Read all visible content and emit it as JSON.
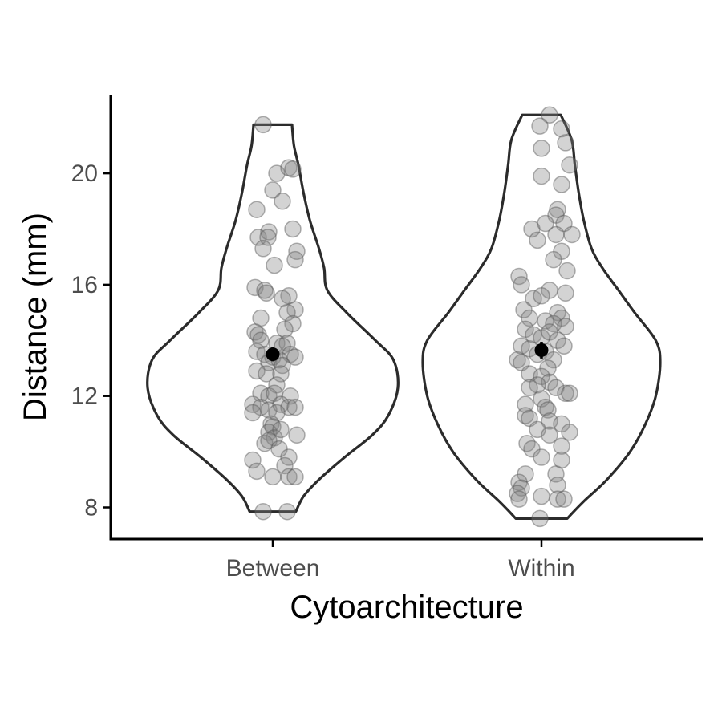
{
  "chart_data": {
    "type": "violin",
    "xlabel": "Cytoarchitecture",
    "ylabel": "Distance (mm)",
    "ylim": [
      6.8,
      22.8
    ],
    "yticks": [
      8,
      12,
      16,
      20
    ],
    "categories": [
      "Between",
      "Within"
    ],
    "groups": [
      {
        "category": "Between",
        "min": 7.85,
        "max": 21.75,
        "mean": 13.5,
        "error": [
          13.25,
          13.75
        ],
        "density": [
          [
            7.85,
            0.36
          ],
          [
            8.4,
            0.48
          ],
          [
            9.0,
            0.72
          ],
          [
            9.8,
            1.12
          ],
          [
            10.6,
            1.55
          ],
          [
            11.3,
            1.8
          ],
          [
            12.3,
            1.95
          ],
          [
            13.3,
            1.88
          ],
          [
            14.0,
            1.6
          ],
          [
            15.0,
            1.15
          ],
          [
            15.8,
            0.85
          ],
          [
            16.6,
            0.8
          ],
          [
            17.3,
            0.72
          ],
          [
            18.3,
            0.58
          ],
          [
            19.3,
            0.48
          ],
          [
            20.3,
            0.4
          ],
          [
            21.0,
            0.33
          ],
          [
            21.75,
            0.3
          ]
        ],
        "points": [
          [
            -0.12,
            21.75
          ],
          [
            0.05,
            20.0
          ],
          [
            0.2,
            20.2
          ],
          [
            0.25,
            20.15
          ],
          [
            0.0,
            19.4
          ],
          [
            0.12,
            19.0
          ],
          [
            -0.2,
            18.7
          ],
          [
            -0.18,
            17.7
          ],
          [
            -0.05,
            17.9
          ],
          [
            -0.06,
            17.7
          ],
          [
            0.25,
            18.0
          ],
          [
            -0.12,
            17.3
          ],
          [
            0.3,
            17.2
          ],
          [
            0.28,
            16.9
          ],
          [
            0.02,
            16.7
          ],
          [
            -0.22,
            15.9
          ],
          [
            -0.1,
            15.8
          ],
          [
            -0.08,
            15.7
          ],
          [
            0.2,
            15.6
          ],
          [
            0.12,
            15.5
          ],
          [
            0.28,
            15.1
          ],
          [
            0.18,
            15.0
          ],
          [
            -0.15,
            14.8
          ],
          [
            0.25,
            14.6
          ],
          [
            0.15,
            14.4
          ],
          [
            -0.22,
            14.3
          ],
          [
            -0.18,
            14.2
          ],
          [
            -0.15,
            14.0
          ],
          [
            0.05,
            13.9
          ],
          [
            0.18,
            13.9
          ],
          [
            0.12,
            13.8
          ],
          [
            -0.2,
            13.6
          ],
          [
            -0.1,
            13.5
          ],
          [
            0.0,
            13.4
          ],
          [
            0.22,
            13.5
          ],
          [
            0.28,
            13.4
          ],
          [
            -0.05,
            13.2
          ],
          [
            0.08,
            13.3
          ],
          [
            0.12,
            13.1
          ],
          [
            -0.2,
            12.9
          ],
          [
            -0.08,
            12.8
          ],
          [
            0.1,
            12.8
          ],
          [
            0.05,
            12.4
          ],
          [
            -0.15,
            12.1
          ],
          [
            -0.05,
            12.0
          ],
          [
            0.02,
            12.1
          ],
          [
            0.22,
            12.0
          ],
          [
            -0.25,
            11.7
          ],
          [
            -0.15,
            11.6
          ],
          [
            -0.05,
            11.5
          ],
          [
            0.1,
            11.7
          ],
          [
            0.2,
            11.6
          ],
          [
            0.28,
            11.6
          ],
          [
            -0.25,
            11.4
          ],
          [
            0.05,
            11.4
          ],
          [
            -0.02,
            11.0
          ],
          [
            0.0,
            10.9
          ],
          [
            -0.05,
            10.7
          ],
          [
            0.02,
            10.5
          ],
          [
            0.1,
            10.8
          ],
          [
            0.3,
            10.6
          ],
          [
            -0.1,
            10.3
          ],
          [
            -0.05,
            10.4
          ],
          [
            0.08,
            10.1
          ],
          [
            -0.25,
            9.7
          ],
          [
            0.2,
            9.8
          ],
          [
            -0.2,
            9.3
          ],
          [
            0.15,
            9.5
          ],
          [
            0.0,
            9.1
          ],
          [
            0.2,
            9.1
          ],
          [
            0.28,
            9.1
          ],
          [
            -0.12,
            7.85
          ],
          [
            0.18,
            7.85
          ]
        ]
      },
      {
        "category": "Within",
        "min": 7.6,
        "max": 22.1,
        "mean": 13.65,
        "error": [
          13.35,
          13.95
        ],
        "density": [
          [
            7.6,
            0.4
          ],
          [
            8.2,
            0.65
          ],
          [
            9.0,
            1.02
          ],
          [
            10.0,
            1.38
          ],
          [
            11.0,
            1.62
          ],
          [
            12.0,
            1.78
          ],
          [
            13.2,
            1.85
          ],
          [
            14.0,
            1.78
          ],
          [
            15.0,
            1.45
          ],
          [
            15.8,
            1.2
          ],
          [
            16.6,
            0.95
          ],
          [
            17.3,
            0.78
          ],
          [
            18.3,
            0.66
          ],
          [
            19.3,
            0.58
          ],
          [
            20.3,
            0.52
          ],
          [
            21.2,
            0.47
          ],
          [
            22.1,
            0.3
          ]
        ],
        "points": [
          [
            0.1,
            22.1
          ],
          [
            -0.02,
            21.7
          ],
          [
            0.25,
            21.6
          ],
          [
            0.3,
            21.1
          ],
          [
            0.0,
            20.9
          ],
          [
            0.35,
            20.3
          ],
          [
            0.0,
            19.9
          ],
          [
            0.25,
            19.6
          ],
          [
            0.2,
            18.7
          ],
          [
            0.18,
            18.5
          ],
          [
            -0.12,
            18.0
          ],
          [
            0.05,
            18.2
          ],
          [
            0.28,
            18.2
          ],
          [
            0.18,
            17.8
          ],
          [
            0.38,
            17.8
          ],
          [
            -0.05,
            17.6
          ],
          [
            0.25,
            17.2
          ],
          [
            0.15,
            16.9
          ],
          [
            0.32,
            16.5
          ],
          [
            -0.28,
            16.3
          ],
          [
            -0.25,
            16.0
          ],
          [
            0.1,
            15.8
          ],
          [
            0.3,
            15.7
          ],
          [
            -0.1,
            15.5
          ],
          [
            0.0,
            15.6
          ],
          [
            -0.22,
            15.1
          ],
          [
            0.2,
            15.0
          ],
          [
            0.25,
            14.8
          ],
          [
            -0.15,
            14.8
          ],
          [
            0.05,
            14.7
          ],
          [
            0.15,
            14.6
          ],
          [
            0.3,
            14.5
          ],
          [
            -0.2,
            14.4
          ],
          [
            -0.1,
            14.2
          ],
          [
            0.0,
            14.1
          ],
          [
            0.1,
            14.3
          ],
          [
            0.2,
            14.0
          ],
          [
            -0.25,
            13.8
          ],
          [
            -0.15,
            13.7
          ],
          [
            0.28,
            13.8
          ],
          [
            -0.05,
            13.5
          ],
          [
            0.05,
            13.6
          ],
          [
            0.15,
            13.3
          ],
          [
            -0.3,
            13.3
          ],
          [
            -0.25,
            13.2
          ],
          [
            0.08,
            13.0
          ],
          [
            -0.15,
            12.8
          ],
          [
            0.0,
            12.7
          ],
          [
            0.1,
            12.5
          ],
          [
            -0.05,
            12.4
          ],
          [
            -0.15,
            12.3
          ],
          [
            0.18,
            12.3
          ],
          [
            0.3,
            12.1
          ],
          [
            0.35,
            12.1
          ],
          [
            0.0,
            11.9
          ],
          [
            -0.2,
            11.7
          ],
          [
            0.05,
            11.6
          ],
          [
            0.08,
            11.5
          ],
          [
            -0.2,
            11.3
          ],
          [
            -0.15,
            11.2
          ],
          [
            0.1,
            11.1
          ],
          [
            0.25,
            11.0
          ],
          [
            -0.05,
            10.8
          ],
          [
            0.1,
            10.6
          ],
          [
            0.35,
            10.7
          ],
          [
            -0.18,
            10.3
          ],
          [
            -0.12,
            10.1
          ],
          [
            0.25,
            10.2
          ],
          [
            0.0,
            9.8
          ],
          [
            0.25,
            9.7
          ],
          [
            -0.2,
            9.2
          ],
          [
            0.18,
            9.2
          ],
          [
            -0.28,
            8.9
          ],
          [
            -0.25,
            8.7
          ],
          [
            0.2,
            8.8
          ],
          [
            -0.3,
            8.5
          ],
          [
            -0.28,
            8.3
          ],
          [
            0.0,
            8.4
          ],
          [
            0.2,
            8.3
          ],
          [
            0.28,
            8.3
          ],
          [
            -0.02,
            7.6
          ]
        ]
      }
    ]
  }
}
